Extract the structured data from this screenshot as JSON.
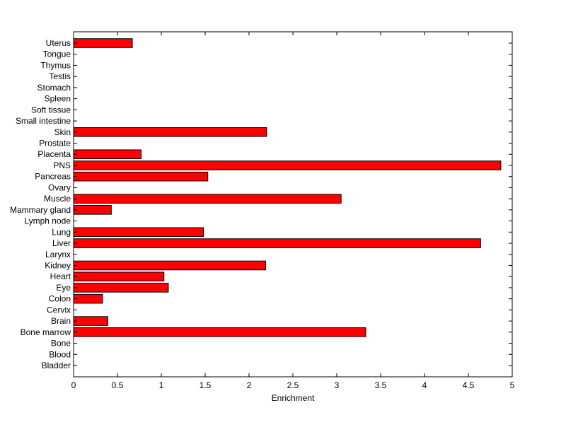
{
  "chart_data": {
    "type": "bar",
    "orientation": "horizontal",
    "title": "",
    "xlabel": "Enrichment",
    "ylabel": "",
    "xlim": [
      0,
      5
    ],
    "xticks": [
      0,
      0.5,
      1,
      1.5,
      2,
      2.5,
      3,
      3.5,
      4,
      4.5,
      5
    ],
    "xtick_labels": [
      "0",
      "0.5",
      "1",
      "1.5",
      "2",
      "2.5",
      "3",
      "3.5",
      "4",
      "4.5",
      "5"
    ],
    "grid": false,
    "legend": "none",
    "bar_color": "#ff0000",
    "bar_edge_color": "#000000",
    "categories": [
      "Bladder",
      "Blood",
      "Bone",
      "Bone marrow",
      "Brain",
      "Cervix",
      "Colon",
      "Eye",
      "Heart",
      "Kidney",
      "Larynx",
      "Liver",
      "Lung",
      "Lymph node",
      "Mammary gland",
      "Muscle",
      "Ovary",
      "Pancreas",
      "PNS",
      "Placenta",
      "Prostate",
      "Skin",
      "Small intestine",
      "Soft tissue",
      "Spleen",
      "Stomach",
      "Testis",
      "Thymus",
      "Tongue",
      "Uterus"
    ],
    "values": [
      0,
      0,
      0,
      3.33,
      0.39,
      0,
      0.33,
      1.08,
      1.03,
      2.19,
      0,
      4.64,
      1.48,
      0,
      0.43,
      3.05,
      0,
      1.53,
      4.87,
      0.77,
      0,
      2.2,
      0,
      0,
      0,
      0,
      0,
      0,
      0,
      0.67
    ]
  }
}
